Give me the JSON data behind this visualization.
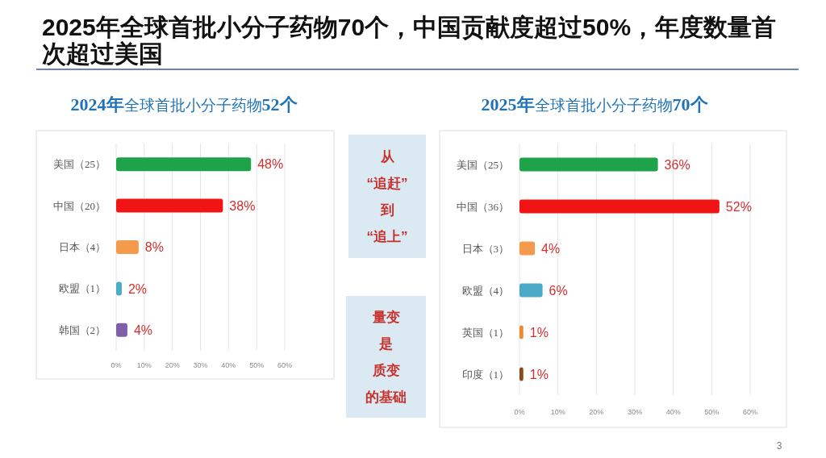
{
  "chart_data": [
    {
      "type": "other",
      "title": "2025年全球首批小分子药物70个，中国贡献度超过50%，年度数量首次超过美国",
      "annotations": [
        "3"
      ]
    },
    {
      "type": "bar",
      "orientation": "horizontal",
      "title": "2024年全球首批小分子药物52个",
      "categories": [
        "美国（25）",
        "中国（20）",
        "日本（4）",
        "欧盟（1）",
        "韩国（2）"
      ],
      "values": [
        48,
        38,
        8,
        2,
        4
      ],
      "colors": [
        "#1ea34a",
        "#f01414",
        "#f39a4c",
        "#4bacc6",
        "#7f5fa8"
      ],
      "value_labels": [
        "48%",
        "38%",
        "8%",
        "2%",
        "4%"
      ],
      "xlim": [
        0,
        60
      ],
      "xticks": [
        {
          "value": 0,
          "label": "0%"
        },
        {
          "value": 10,
          "label": "10%"
        },
        {
          "value": 20,
          "label": "20%"
        },
        {
          "value": 30,
          "label": "30%"
        },
        {
          "value": 40,
          "label": "40%"
        },
        {
          "value": 50,
          "label": "50%"
        },
        {
          "value": 60,
          "label": "60%"
        }
      ],
      "grid": "x"
    },
    {
      "type": "other",
      "annotations": [
        "从“追赶”到“追上”",
        "量变是质变的基础"
      ]
    },
    {
      "type": "bar",
      "orientation": "horizontal",
      "title": "2025年全球首批小分子药物70个",
      "categories": [
        "美国（25）",
        "中国（36）",
        "日本（3）",
        "欧盟（4）",
        "英国（1）",
        "印度（1）"
      ],
      "values": [
        36,
        52,
        4,
        6,
        1,
        1
      ],
      "colors": [
        "#1ea34a",
        "#f01414",
        "#f39a4c",
        "#4aa8c8",
        "#f08a32",
        "#8b4a1c"
      ],
      "value_labels": [
        "36%",
        "52%",
        "4%",
        "6%",
        "1%",
        "1%"
      ],
      "xlim": [
        0,
        60
      ],
      "xticks": [
        {
          "value": 0,
          "label": "0%"
        },
        {
          "value": 10,
          "label": "10%"
        },
        {
          "value": 20,
          "label": "20%"
        },
        {
          "value": 30,
          "label": "30%"
        },
        {
          "value": 40,
          "label": "40%"
        },
        {
          "value": 50,
          "label": "50%"
        },
        {
          "value": 60,
          "label": "60%"
        }
      ],
      "grid": "x"
    }
  ]
}
